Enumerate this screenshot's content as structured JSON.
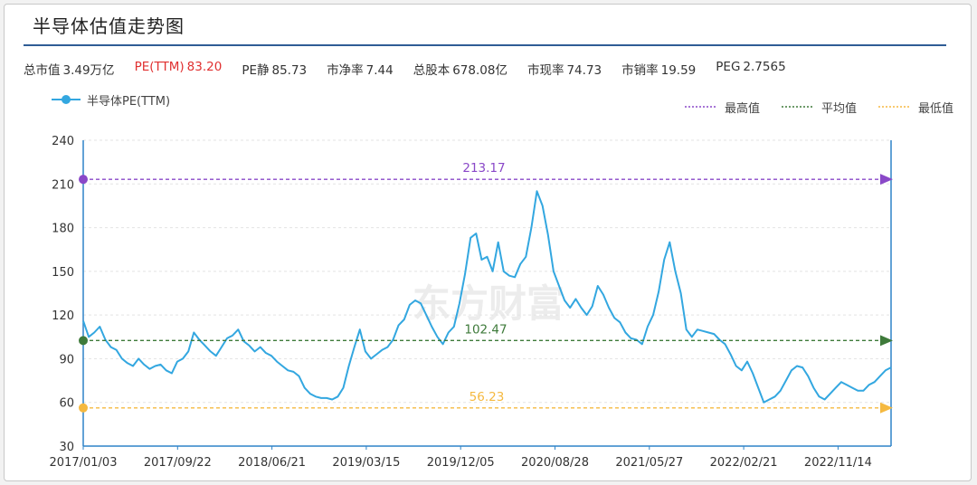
{
  "header": {
    "title": "半导体估值走势图"
  },
  "stats": [
    {
      "label": "总市值",
      "value": "3.49万亿",
      "highlight": false
    },
    {
      "label": "PE(TTM)",
      "value": "83.20",
      "highlight": true
    },
    {
      "label": "PE静",
      "value": "85.73",
      "highlight": false
    },
    {
      "label": "市净率",
      "value": "7.44",
      "highlight": false
    },
    {
      "label": "总股本",
      "value": "678.08亿",
      "highlight": false
    },
    {
      "label": "市现率",
      "value": "74.73",
      "highlight": false
    },
    {
      "label": "市销率",
      "value": "19.59",
      "highlight": false
    },
    {
      "label": "PEG",
      "value": "2.7565",
      "highlight": false
    }
  ],
  "watermark": "东方财富",
  "chart_data": {
    "type": "line",
    "title": "",
    "xlabel": "",
    "ylabel": "",
    "ylim": [
      30,
      240
    ],
    "yticks": [
      30,
      60,
      90,
      120,
      150,
      180,
      210,
      240
    ],
    "xticks": [
      "2017/01/03",
      "2017/09/22",
      "2018/06/21",
      "2019/03/15",
      "2019/12/05",
      "2020/08/28",
      "2021/05/27",
      "2022/02/21",
      "2022/11/14"
    ],
    "grid": true,
    "legend_position": "top",
    "series": [
      {
        "name": "半导体PE(TTM)",
        "color": "#33a7e0",
        "values": [
          116,
          105,
          108,
          112,
          103,
          98,
          96,
          90,
          87,
          85,
          90,
          86,
          83,
          85,
          86,
          82,
          80,
          88,
          90,
          95,
          108,
          103,
          99,
          95,
          92,
          98,
          104,
          106,
          110,
          102,
          99,
          95,
          98,
          94,
          92,
          88,
          85,
          82,
          81,
          78,
          70,
          66,
          64,
          63,
          63,
          62,
          64,
          70,
          85,
          98,
          110,
          95,
          90,
          93,
          96,
          98,
          103,
          113,
          117,
          127,
          130,
          128,
          120,
          112,
          105,
          100,
          108,
          112,
          128,
          148,
          173,
          176,
          158,
          160,
          150,
          170,
          150,
          147,
          146,
          155,
          160,
          180,
          205,
          195,
          175,
          150,
          140,
          130,
          125,
          131,
          125,
          120,
          126,
          140,
          134,
          125,
          118,
          115,
          108,
          104,
          103,
          100,
          112,
          120,
          136,
          158,
          170,
          150,
          135,
          110,
          105,
          110,
          109,
          108,
          107,
          103,
          100,
          93,
          85,
          82,
          88,
          80,
          70,
          60,
          62,
          64,
          68,
          75,
          82,
          85,
          84,
          78,
          70,
          64,
          62,
          66,
          70,
          74,
          72,
          70,
          68,
          68,
          72,
          74,
          78,
          82,
          84
        ]
      }
    ],
    "reference_lines": [
      {
        "name": "最高值",
        "value": 213.17,
        "label": "213.17",
        "color": "#8a48c8"
      },
      {
        "name": "平均值",
        "value": 102.47,
        "label": "102.47",
        "color": "#3e7a3a"
      },
      {
        "name": "最低值",
        "value": 56.23,
        "label": "56.23",
        "color": "#f5b940"
      }
    ]
  }
}
